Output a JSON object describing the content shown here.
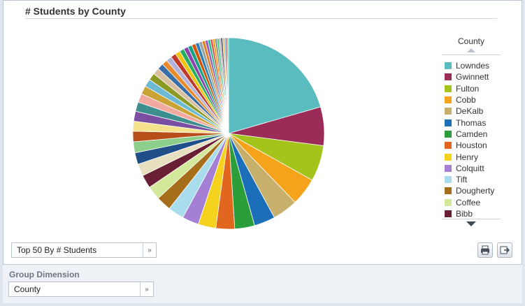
{
  "chart_data": {
    "type": "pie",
    "title": "# Students by County",
    "legend_title": "County",
    "legend_position": "right",
    "slices": [
      {
        "label": "Lowndes",
        "value": 22.0,
        "color": "#5bbcc0"
      },
      {
        "label": "Gwinnett",
        "value": 7.0,
        "color": "#9b2c58"
      },
      {
        "label": "Fulton",
        "value": 6.5,
        "color": "#a4c41c"
      },
      {
        "label": "Cobb",
        "value": 5.0,
        "color": "#f4a31b"
      },
      {
        "label": "DeKalb",
        "value": 4.6,
        "color": "#c7b06b"
      },
      {
        "label": "Thomas",
        "value": 3.8,
        "color": "#1a6fb8"
      },
      {
        "label": "Camden",
        "value": 3.6,
        "color": "#2b9e3a"
      },
      {
        "label": "Houston",
        "value": 3.4,
        "color": "#e0671d"
      },
      {
        "label": "Henry",
        "value": 3.2,
        "color": "#f5d21e"
      },
      {
        "label": "Colquitt",
        "value": 3.0,
        "color": "#a57fd4"
      },
      {
        "label": "Tift",
        "value": 2.9,
        "color": "#a9dcec"
      },
      {
        "label": "Dougherty",
        "value": 2.7,
        "color": "#a66d1a"
      },
      {
        "label": "Coffee",
        "value": 2.5,
        "color": "#d3e89a"
      },
      {
        "label": "Bibb",
        "value": 2.4,
        "color": "#6b1f35"
      },
      {
        "label": "",
        "value": 2.2,
        "color": "#e8dfc0"
      },
      {
        "label": "",
        "value": 2.1,
        "color": "#1f4e88"
      },
      {
        "label": "",
        "value": 2.0,
        "color": "#8ccf8a"
      },
      {
        "label": "",
        "value": 1.9,
        "color": "#b84e1a"
      },
      {
        "label": "",
        "value": 1.8,
        "color": "#f6e28c"
      },
      {
        "label": "",
        "value": 1.8,
        "color": "#7a4fa1"
      },
      {
        "label": "",
        "value": 1.7,
        "color": "#3d8f8e"
      },
      {
        "label": "",
        "value": 1.6,
        "color": "#f2a9a0"
      },
      {
        "label": "",
        "value": 1.5,
        "color": "#c9a335"
      },
      {
        "label": "",
        "value": 1.4,
        "color": "#6cbad4"
      },
      {
        "label": "",
        "value": 1.3,
        "color": "#8a9a24"
      },
      {
        "label": "",
        "value": 1.2,
        "color": "#d9bfa0"
      },
      {
        "label": "",
        "value": 1.1,
        "color": "#3a6ea8"
      },
      {
        "label": "",
        "value": 1.0,
        "color": "#e98b2a"
      },
      {
        "label": "",
        "value": 1.0,
        "color": "#b3b3d9"
      },
      {
        "label": "",
        "value": 0.95,
        "color": "#c0392b"
      },
      {
        "label": "",
        "value": 0.9,
        "color": "#f1c40f"
      },
      {
        "label": "",
        "value": 0.85,
        "color": "#27ae60"
      },
      {
        "label": "",
        "value": 0.8,
        "color": "#8e44ad"
      },
      {
        "label": "",
        "value": 0.75,
        "color": "#16a085"
      },
      {
        "label": "",
        "value": 0.7,
        "color": "#d35400"
      },
      {
        "label": "",
        "value": 0.65,
        "color": "#2c7fb8"
      },
      {
        "label": "",
        "value": 0.6,
        "color": "#95a5a6"
      },
      {
        "label": "",
        "value": 0.55,
        "color": "#e67e22"
      },
      {
        "label": "",
        "value": 0.5,
        "color": "#9b59b6"
      },
      {
        "label": "",
        "value": 0.45,
        "color": "#1abc9c"
      },
      {
        "label": "",
        "value": 0.42,
        "color": "#e74c3c"
      },
      {
        "label": "",
        "value": 0.4,
        "color": "#f39c12"
      },
      {
        "label": "",
        "value": 0.38,
        "color": "#7f8c8d"
      },
      {
        "label": "",
        "value": 0.36,
        "color": "#2ecc71"
      },
      {
        "label": "",
        "value": 0.34,
        "color": "#c8a2c8"
      },
      {
        "label": "",
        "value": 0.32,
        "color": "#34495e"
      },
      {
        "label": "",
        "value": 0.3,
        "color": "#f5b041"
      },
      {
        "label": "",
        "value": 0.28,
        "color": "#5dade2"
      },
      {
        "label": "",
        "value": 0.26,
        "color": "#a93226"
      },
      {
        "label": "",
        "value": 0.24,
        "color": "#48c9b0"
      }
    ]
  },
  "controls": {
    "top_filter": "Top 50 By # Students",
    "group_dimension_label": "Group Dimension",
    "group_dimension_value": "County",
    "dropdown_arrow": "»",
    "icons": [
      "print-icon",
      "export-icon"
    ]
  }
}
